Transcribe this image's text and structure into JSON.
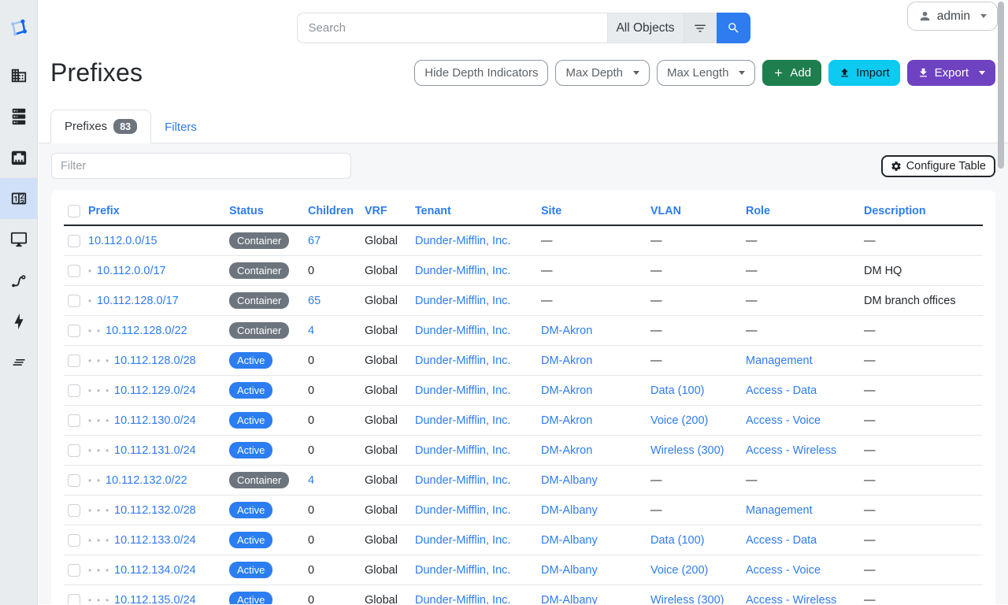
{
  "sidebar": {
    "active_item": "ipam",
    "icons": [
      "netbox-logo",
      "organization-building",
      "devices-server",
      "connections-ethernet",
      "ipam-counter",
      "virtualization-monitor",
      "circuits-transit",
      "power-bolt",
      "operations-lines"
    ]
  },
  "topbar": {
    "search_placeholder": "Search",
    "scope_button_label": "All Objects",
    "user_label": "admin"
  },
  "page": {
    "title": "Prefixes"
  },
  "toolbar": {
    "hide_depth_label": "Hide Depth Indicators",
    "max_depth_label": "Max Depth",
    "max_length_label": "Max Length",
    "add_label": "Add",
    "import_label": "Import",
    "export_label": "Export"
  },
  "tabs": {
    "prefixes_label": "Prefixes",
    "prefixes_count": "83",
    "filters_label": "Filters"
  },
  "table_controls": {
    "filter_placeholder": "Filter",
    "configure_label": "Configure Table"
  },
  "table": {
    "columns": [
      "Prefix",
      "Status",
      "Children",
      "VRF",
      "Tenant",
      "Site",
      "VLAN",
      "Role",
      "Description"
    ],
    "rows": [
      {
        "depth": 0,
        "prefix": "10.112.0.0/15",
        "status": "Container",
        "status_variant": "container",
        "children": "67",
        "children_is_link": true,
        "vrf": "Global",
        "tenant": "Dunder-Mifflin, Inc.",
        "site": "—",
        "vlan": "—",
        "role": "—",
        "description": "—"
      },
      {
        "depth": 1,
        "prefix": "10.112.0.0/17",
        "status": "Container",
        "status_variant": "container",
        "children": "0",
        "children_is_link": false,
        "vrf": "Global",
        "tenant": "Dunder-Mifflin, Inc.",
        "site": "—",
        "vlan": "—",
        "role": "—",
        "description": "DM HQ"
      },
      {
        "depth": 1,
        "prefix": "10.112.128.0/17",
        "status": "Container",
        "status_variant": "container",
        "children": "65",
        "children_is_link": true,
        "vrf": "Global",
        "tenant": "Dunder-Mifflin, Inc.",
        "site": "—",
        "vlan": "—",
        "role": "—",
        "description": "DM branch offices"
      },
      {
        "depth": 2,
        "prefix": "10.112.128.0/22",
        "status": "Container",
        "status_variant": "container",
        "children": "4",
        "children_is_link": true,
        "vrf": "Global",
        "tenant": "Dunder-Mifflin, Inc.",
        "site": "DM-Akron",
        "vlan": "—",
        "role": "—",
        "description": "—"
      },
      {
        "depth": 3,
        "prefix": "10.112.128.0/28",
        "status": "Active",
        "status_variant": "active",
        "children": "0",
        "children_is_link": false,
        "vrf": "Global",
        "tenant": "Dunder-Mifflin, Inc.",
        "site": "DM-Akron",
        "vlan": "—",
        "role": "Management",
        "description": "—"
      },
      {
        "depth": 3,
        "prefix": "10.112.129.0/24",
        "status": "Active",
        "status_variant": "active",
        "children": "0",
        "children_is_link": false,
        "vrf": "Global",
        "tenant": "Dunder-Mifflin, Inc.",
        "site": "DM-Akron",
        "vlan": "Data (100)",
        "role": "Access - Data",
        "description": "—"
      },
      {
        "depth": 3,
        "prefix": "10.112.130.0/24",
        "status": "Active",
        "status_variant": "active",
        "children": "0",
        "children_is_link": false,
        "vrf": "Global",
        "tenant": "Dunder-Mifflin, Inc.",
        "site": "DM-Akron",
        "vlan": "Voice (200)",
        "role": "Access - Voice",
        "description": "—"
      },
      {
        "depth": 3,
        "prefix": "10.112.131.0/24",
        "status": "Active",
        "status_variant": "active",
        "children": "0",
        "children_is_link": false,
        "vrf": "Global",
        "tenant": "Dunder-Mifflin, Inc.",
        "site": "DM-Akron",
        "vlan": "Wireless (300)",
        "role": "Access - Wireless",
        "description": "—"
      },
      {
        "depth": 2,
        "prefix": "10.112.132.0/22",
        "status": "Container",
        "status_variant": "container",
        "children": "4",
        "children_is_link": true,
        "vrf": "Global",
        "tenant": "Dunder-Mifflin, Inc.",
        "site": "DM-Albany",
        "vlan": "—",
        "role": "—",
        "description": "—"
      },
      {
        "depth": 3,
        "prefix": "10.112.132.0/28",
        "status": "Active",
        "status_variant": "active",
        "children": "0",
        "children_is_link": false,
        "vrf": "Global",
        "tenant": "Dunder-Mifflin, Inc.",
        "site": "DM-Albany",
        "vlan": "—",
        "role": "Management",
        "description": "—"
      },
      {
        "depth": 3,
        "prefix": "10.112.133.0/24",
        "status": "Active",
        "status_variant": "active",
        "children": "0",
        "children_is_link": false,
        "vrf": "Global",
        "tenant": "Dunder-Mifflin, Inc.",
        "site": "DM-Albany",
        "vlan": "Data (100)",
        "role": "Access - Data",
        "description": "—"
      },
      {
        "depth": 3,
        "prefix": "10.112.134.0/24",
        "status": "Active",
        "status_variant": "active",
        "children": "0",
        "children_is_link": false,
        "vrf": "Global",
        "tenant": "Dunder-Mifflin, Inc.",
        "site": "DM-Albany",
        "vlan": "Voice (200)",
        "role": "Access - Voice",
        "description": "—"
      },
      {
        "depth": 3,
        "prefix": "10.112.135.0/24",
        "status": "Active",
        "status_variant": "active",
        "children": "0",
        "children_is_link": false,
        "vrf": "Global",
        "tenant": "Dunder-Mifflin, Inc.",
        "site": "DM-Albany",
        "vlan": "Wireless (300)",
        "role": "Access - Wireless",
        "description": "—"
      }
    ]
  },
  "colors": {
    "link_blue": "#2e7cf0",
    "badge_active_blue": "#2b7df1",
    "badge_container_gray": "#6c757d",
    "add_green": "#1e7e4e",
    "import_cyan": "#0dcaf0",
    "export_purple": "#6f42c1",
    "sidebar_active_bg": "#cfe0f8",
    "panel_bg": "#f6f7f9"
  }
}
